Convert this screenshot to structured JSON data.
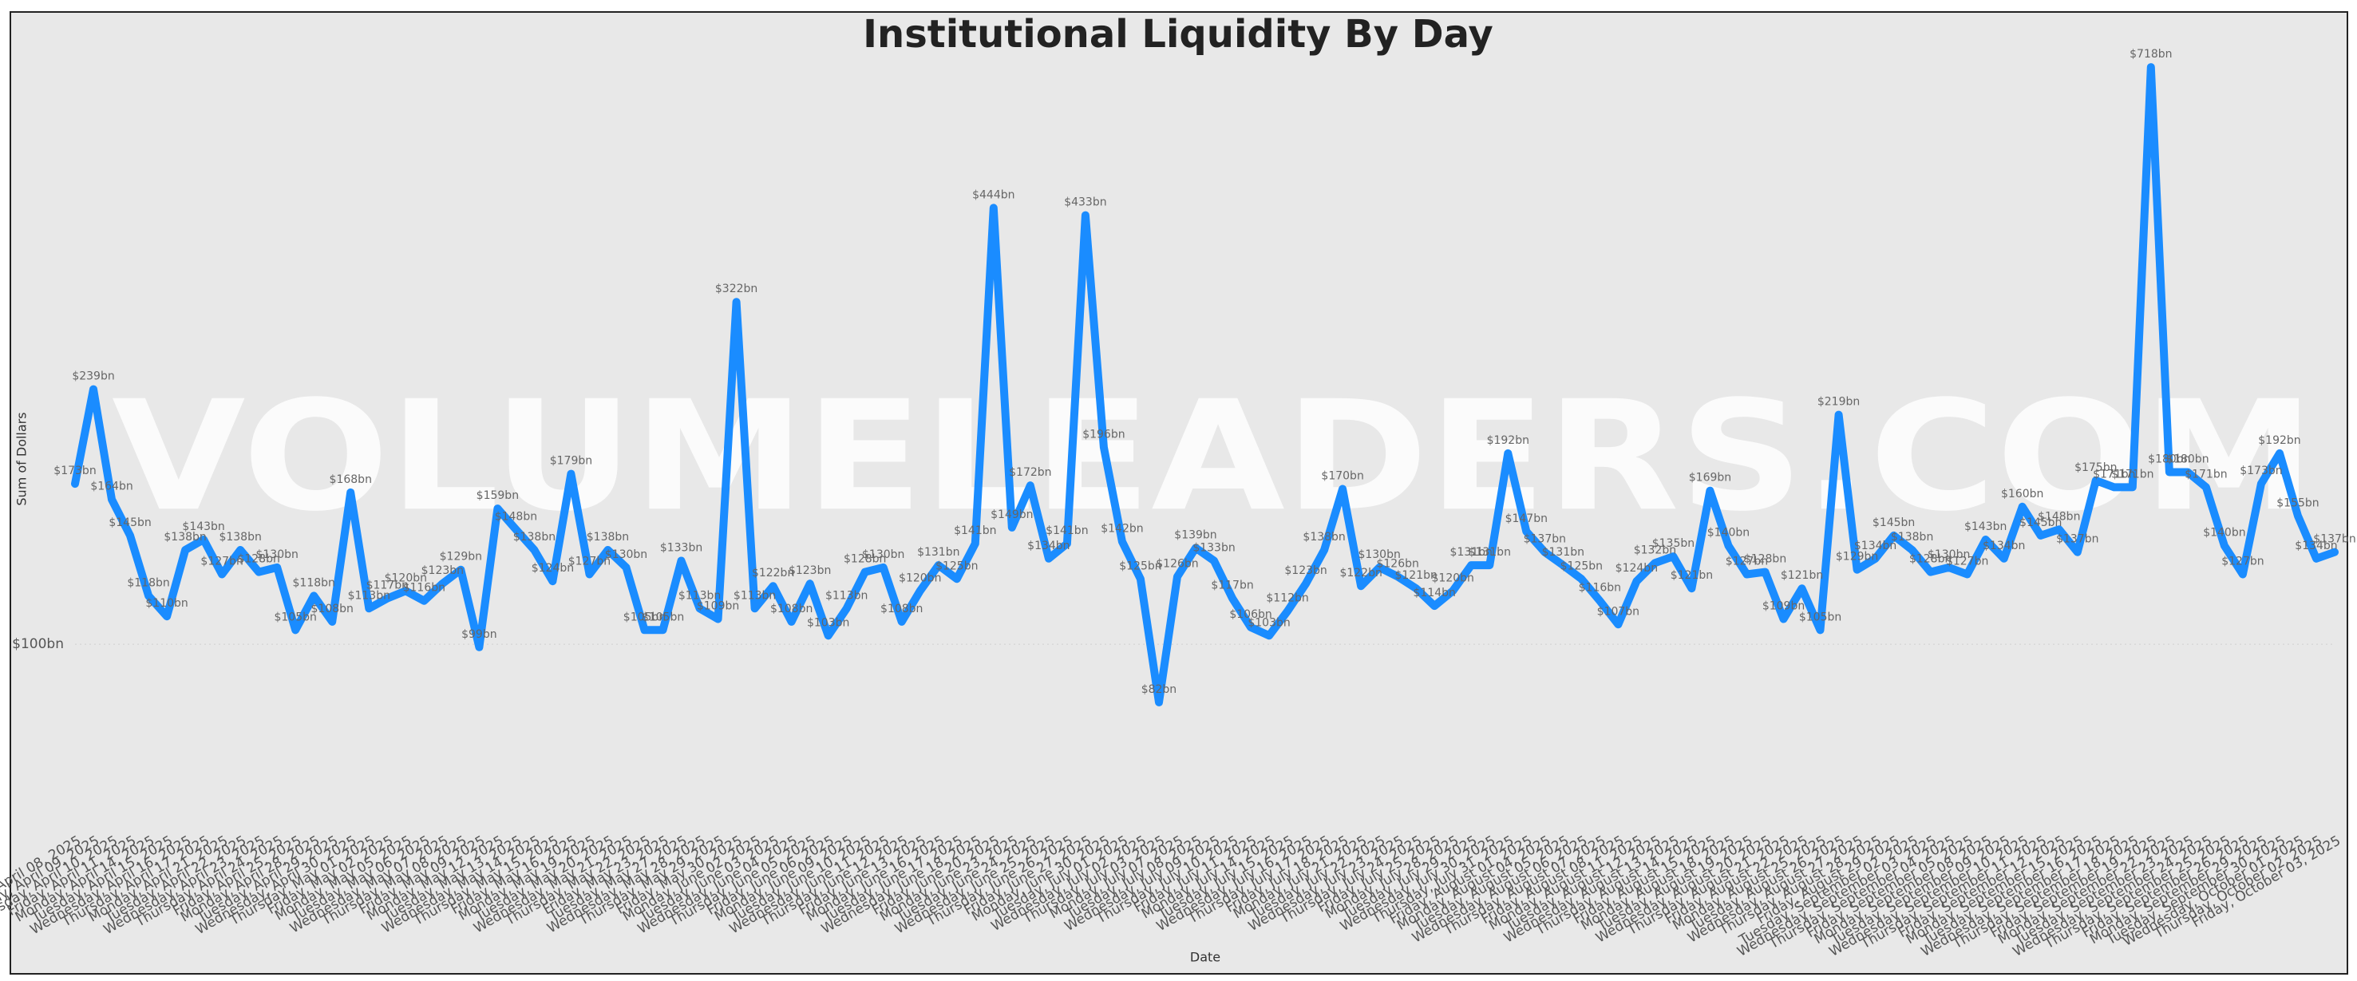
{
  "chart_data": {
    "type": "line",
    "title": "Institutional Liquidity By Day",
    "x_label": "Date",
    "y_label": "Sum of Dollars",
    "watermark": "VOLUMELEADERS.COM",
    "color": "#1a8cff",
    "log_scale": true,
    "grid": true,
    "ylim": [
      80,
      740
    ],
    "yticks": [
      {
        "value": 100,
        "label": "$100bn"
      }
    ],
    "categories": [
      "Tuesday, April 08, 2025",
      "Wednesday, April 09, 2025",
      "Thursday, April 10, 2025",
      "Friday, April 11, 2025",
      "Monday, April 14, 2025",
      "Tuesday, April 15, 2025",
      "Wednesday, April 16, 2025",
      "Thursday, April 17, 2025",
      "Monday, April 21, 2025",
      "Tuesday, April 22, 2025",
      "Wednesday, April 23, 2025",
      "Thursday, April 24, 2025",
      "Friday, April 25, 2025",
      "Monday, April 28, 2025",
      "Tuesday, April 29, 2025",
      "Wednesday, April 30, 2025",
      "Thursday, May 01, 2025",
      "Friday, May 02, 2025",
      "Monday, May 05, 2025",
      "Tuesday, May 06, 2025",
      "Wednesday, May 07, 2025",
      "Thursday, May 08, 2025",
      "Friday, May 09, 2025",
      "Monday, May 12, 2025",
      "Tuesday, May 13, 2025",
      "Wednesday, May 14, 2025",
      "Thursday, May 15, 2025",
      "Friday, May 16, 2025",
      "Monday, May 19, 2025",
      "Tuesday, May 20, 2025",
      "Wednesday, May 21, 2025",
      "Thursday, May 22, 2025",
      "Friday, May 23, 2025",
      "Tuesday, May 27, 2025",
      "Wednesday, May 28, 2025",
      "Thursday, May 29, 2025",
      "Friday, May 30, 2025",
      "Monday, June 02, 2025",
      "Tuesday, June 03, 2025",
      "Wednesday, June 04, 2025",
      "Thursday, June 05, 2025",
      "Friday, June 06, 2025",
      "Monday, June 09, 2025",
      "Tuesday, June 10, 2025",
      "Wednesday, June 11, 2025",
      "Thursday, June 12, 2025",
      "Friday, June 13, 2025",
      "Monday, June 16, 2025",
      "Tuesday, June 17, 2025",
      "Wednesday, June 18, 2025",
      "Friday, June 20, 2025",
      "Monday, June 23, 2025",
      "Tuesday, June 24, 2025",
      "Wednesday, June 25, 2025",
      "Thursday, June 26, 2025",
      "Friday, June 27, 2025",
      "Monday, June 30, 2025",
      "Tuesday, July 01, 2025",
      "Wednesday, July 02, 2025",
      "Thursday, July 03, 2025",
      "Monday, July 07, 2025",
      "Tuesday, July 08, 2025",
      "Wednesday, July 09, 2025",
      "Thursday, July 10, 2025",
      "Friday, July 11, 2025",
      "Monday, July 14, 2025",
      "Tuesday, July 15, 2025",
      "Wednesday, July 16, 2025",
      "Thursday, July 17, 2025",
      "Friday, July 18, 2025",
      "Monday, July 21, 2025",
      "Tuesday, July 22, 2025",
      "Wednesday, July 23, 2025",
      "Thursday, July 24, 2025",
      "Friday, July 25, 2025",
      "Monday, July 28, 2025",
      "Tuesday, July 29, 2025",
      "Wednesday, July 30, 2025",
      "Thursday, July 31, 2025",
      "Friday, August 01, 2025",
      "Monday, August 04, 2025",
      "Tuesday, August 05, 2025",
      "Wednesday, August 06, 2025",
      "Thursday, August 07, 2025",
      "Friday, August 08, 2025",
      "Monday, August 11, 2025",
      "Tuesday, August 12, 2025",
      "Wednesday, August 13, 2025",
      "Thursday, August 14, 2025",
      "Friday, August 15, 2025",
      "Monday, August 18, 2025",
      "Tuesday, August 19, 2025",
      "Wednesday, August 20, 2025",
      "Thursday, August 21, 2025",
      "Friday, August 22, 2025",
      "Monday, August 25, 2025",
      "Tuesday, August 26, 2025",
      "Wednesday, August 27, 2025",
      "Thursday, August 28, 2025",
      "Friday, August 29, 2025",
      "Tuesday, September 02, 2025",
      "Wednesday, September 03, 2025",
      "Thursday, September 04, 2025",
      "Friday, September 05, 2025",
      "Monday, September 08, 2025",
      "Tuesday, September 09, 2025",
      "Wednesday, September 10, 2025",
      "Thursday, September 11, 2025",
      "Friday, September 12, 2025",
      "Monday, September 15, 2025",
      "Tuesday, September 16, 2025",
      "Wednesday, September 17, 2025",
      "Thursday, September 18, 2025",
      "Friday, September 19, 2025",
      "Monday, September 22, 2025",
      "Tuesday, September 23, 2025",
      "Wednesday, September 24, 2025",
      "Thursday, September 25, 2025",
      "Friday, September 26, 2025",
      "Monday, September 29, 2025",
      "Tuesday, September 30, 2025",
      "Wednesday, October 01, 2025",
      "Thursday, October 02, 2025",
      "Friday, October 03, 2025"
    ],
    "values": [
      173,
      239,
      164,
      145,
      118,
      110,
      138,
      143,
      127,
      138,
      128,
      130,
      105,
      118,
      108,
      168,
      113,
      117,
      120,
      116,
      123,
      129,
      99,
      159,
      148,
      138,
      124,
      179,
      127,
      138,
      130,
      105,
      105,
      133,
      113,
      109,
      322,
      113,
      122,
      108,
      123,
      103,
      113,
      128,
      130,
      108,
      120,
      131,
      125,
      141,
      444,
      149,
      172,
      134,
      141,
      433,
      196,
      142,
      125,
      82,
      126,
      139,
      133,
      117,
      106,
      103,
      112,
      123,
      138,
      170,
      122,
      130,
      126,
      121,
      114,
      120,
      131,
      131,
      192,
      147,
      137,
      131,
      125,
      116,
      107,
      124,
      132,
      135,
      121,
      169,
      140,
      127,
      128,
      109,
      121,
      105,
      219,
      129,
      134,
      145,
      138,
      128,
      130,
      127,
      143,
      134,
      160,
      145,
      148,
      137,
      175,
      171,
      171,
      718,
      180,
      180,
      171,
      140,
      127,
      173,
      192,
      155,
      134,
      137
    ],
    "value_labels": [
      "$173bn",
      "$239bn",
      "$164bn",
      "$145bn",
      "$118bn",
      "$110bn",
      "$138bn",
      "$143bn",
      "$127bn",
      "$138bn",
      "$128bn",
      "$130bn",
      "$105bn",
      "$118bn",
      "$108bn",
      "$168bn",
      "$113bn",
      "$117bn",
      "$120bn",
      "$116bn",
      "$123bn",
      "$129bn",
      "$99bn",
      "$159bn",
      "$148bn",
      "$138bn",
      "$124bn",
      "$179bn",
      "$127bn",
      "$138bn",
      "$130bn",
      "$105bn",
      "$105bn",
      "$133bn",
      "$113bn",
      "$109bn",
      "$322bn",
      "$113bn",
      "$122bn",
      "$108bn",
      "$123bn",
      "$103bn",
      "$113bn",
      "$128bn",
      "$130bn",
      "$108bn",
      "$120bn",
      "$131bn",
      "$125bn",
      "$141bn",
      "$444bn",
      "$149bn",
      "$172bn",
      "$134bn",
      "$141bn",
      "$433bn",
      "$196bn",
      "$142bn",
      "$125bn",
      "$82bn",
      "$126bn",
      "$139bn",
      "$133bn",
      "$117bn",
      "$106bn",
      "$103bn",
      "$112bn",
      "$123bn",
      "$138bn",
      "$170bn",
      "$122bn",
      "$130bn",
      "$126bn",
      "$121bn",
      "$114bn",
      "$120bn",
      "$131bn",
      "$131bn",
      "$192bn",
      "$147bn",
      "$137bn",
      "$131bn",
      "$125bn",
      "$116bn",
      "$107bn",
      "$124bn",
      "$132bn",
      "$135bn",
      "$121bn",
      "$169bn",
      "$140bn",
      "$127bn",
      "$128bn",
      "$109bn",
      "$121bn",
      "$105bn",
      "$219bn",
      "$129bn",
      "$134bn",
      "$145bn",
      "$138bn",
      "$128bn",
      "$130bn",
      "$127bn",
      "$143bn",
      "$134bn",
      "$160bn",
      "$145bn",
      "$148bn",
      "$137bn",
      "$175bn",
      "$171bn",
      "$171bn",
      "$718bn",
      "$180bn",
      "$180bn",
      "$171bn",
      "$140bn",
      "$127bn",
      "$173bn",
      "$192bn",
      "$155bn",
      "$134bn",
      "$137bn"
    ]
  }
}
